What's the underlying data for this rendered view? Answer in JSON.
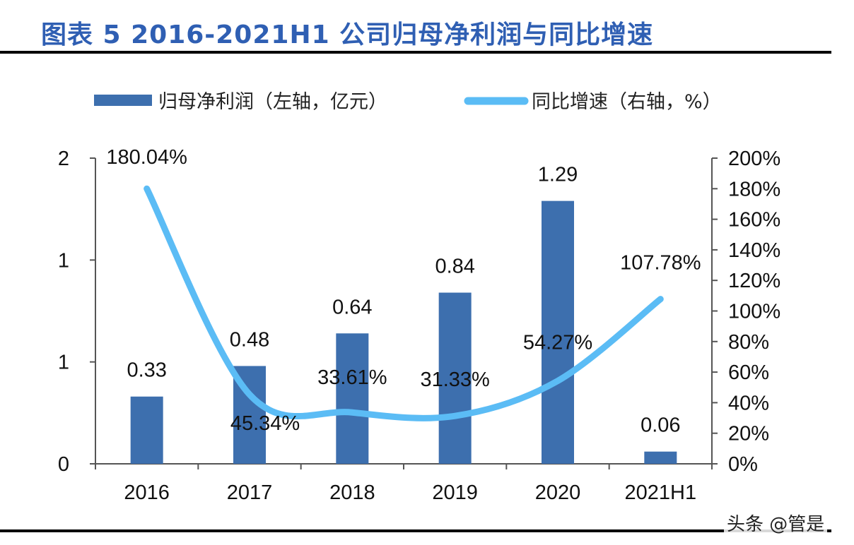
{
  "title": "图表 5 2016-2021H1 公司归母净利润与同比增速",
  "watermark": "头条 @管是",
  "chart_data": {
    "type": "bar+line",
    "title": "图表 5 2016-2021H1 公司归母净利润与同比增速",
    "categories": [
      "2016",
      "2017",
      "2018",
      "2019",
      "2020",
      "2021H1"
    ],
    "series": [
      {
        "name": "归母净利润（左轴，亿元）",
        "type": "bar",
        "axis": "left",
        "color": "#3d6fae",
        "values": [
          0.33,
          0.48,
          0.64,
          0.84,
          1.29,
          0.06
        ],
        "labels": [
          "0.33",
          "0.48",
          "0.64",
          "0.84",
          "1.29",
          "0.06"
        ]
      },
      {
        "name": "同比增速（右轴，%）",
        "type": "line",
        "axis": "right",
        "color": "#5bbcf5",
        "values": [
          180.04,
          45.34,
          33.61,
          31.33,
          54.27,
          107.78
        ],
        "labels": [
          "180.04%",
          "45.34%",
          "33.61%",
          "31.33%",
          "54.27%",
          "107.78%"
        ]
      }
    ],
    "left_axis": {
      "ylim": [
        0,
        1.5
      ],
      "ticks": [
        0,
        0.5,
        1,
        1.5
      ],
      "tick_labels": [
        "0",
        "1",
        "1",
        "2"
      ]
    },
    "right_axis": {
      "ylim": [
        0,
        200
      ],
      "ticks": [
        0,
        20,
        40,
        60,
        80,
        100,
        120,
        140,
        160,
        180,
        200
      ],
      "tick_labels": [
        "0%",
        "20%",
        "40%",
        "60%",
        "80%",
        "100%",
        "120%",
        "140%",
        "160%",
        "180%",
        "200%"
      ]
    },
    "legend": {
      "placement": "top",
      "entries": [
        "归母净利润（左轴，亿元）",
        "同比增速（右轴，%）"
      ]
    },
    "grid": false
  }
}
